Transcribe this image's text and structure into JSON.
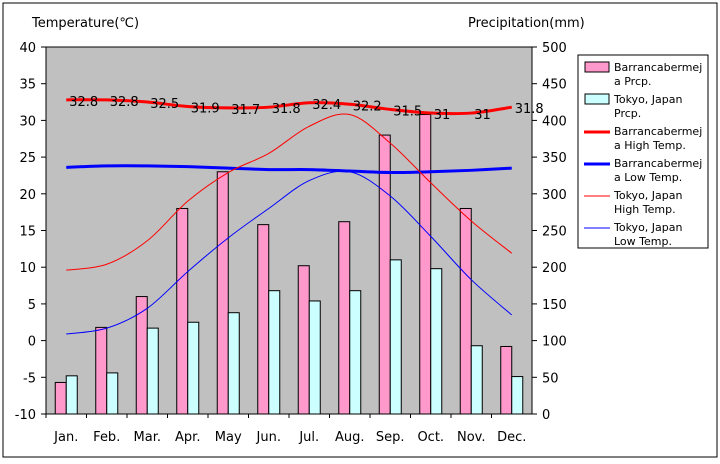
{
  "chart_data": {
    "type": "bar+line",
    "title": "",
    "categories": [
      "Jan.",
      "Feb.",
      "Mar.",
      "Apr.",
      "May",
      "Jun.",
      "Jul.",
      "Aug.",
      "Sep.",
      "Oct.",
      "Nov.",
      "Dec."
    ],
    "y_left": {
      "label": "Temperature(℃)",
      "range": [
        -10,
        40
      ],
      "ticks": [
        40,
        35,
        30,
        25,
        20,
        15,
        10,
        5,
        0,
        -5,
        -10
      ]
    },
    "y_right": {
      "label": "Precipitation(mm)",
      "range": [
        0,
        500
      ],
      "ticks": [
        500,
        450,
        400,
        350,
        300,
        250,
        200,
        150,
        100,
        50,
        0
      ]
    },
    "grid": false,
    "legend_position": "right",
    "series": [
      {
        "name": "Barrancabermeja Prcp.",
        "legend": [
          "Barrancabermej",
          "a Prcp."
        ],
        "kind": "bar",
        "axis": "right",
        "color": "#ff99cc",
        "values": [
          43,
          118,
          160,
          280,
          330,
          258,
          202,
          262,
          380,
          408,
          280,
          92
        ]
      },
      {
        "name": "Tokyo, Japan Prcp.",
        "legend": [
          "Tokyo, Japan",
          "Prcp."
        ],
        "kind": "bar",
        "axis": "right",
        "color": "#ccffff",
        "values": [
          52,
          56,
          117,
          125,
          138,
          168,
          154,
          168,
          210,
          198,
          93,
          51
        ]
      },
      {
        "name": "Barrancabermeja High Temp.",
        "legend": [
          "Barrancabermej",
          "a High Temp."
        ],
        "kind": "line",
        "axis": "left",
        "color": "#ff0000",
        "width": 3,
        "values": [
          32.8,
          32.8,
          32.5,
          31.9,
          31.7,
          31.8,
          32.4,
          32.2,
          31.5,
          31,
          31,
          31.8
        ],
        "labels": [
          "32.8",
          "32.8",
          "32.5",
          "31.9",
          "31.7",
          "31.8",
          "32.4",
          "32.2",
          "31.5",
          "31",
          "31",
          "31.8"
        ]
      },
      {
        "name": "Barrancabermeja Low Temp.",
        "legend": [
          "Barrancabermej",
          "a Low Temp."
        ],
        "kind": "line",
        "axis": "left",
        "color": "#0000ff",
        "width": 3,
        "values": [
          23.6,
          23.8,
          23.8,
          23.7,
          23.5,
          23.3,
          23.3,
          23.1,
          22.9,
          23.0,
          23.2,
          23.5
        ]
      },
      {
        "name": "Tokyo, Japan High Temp.",
        "legend": [
          "Tokyo, Japan",
          "High Temp."
        ],
        "kind": "line",
        "axis": "left",
        "color": "#ff0000",
        "width": 1,
        "values": [
          9.6,
          10.4,
          13.6,
          19.0,
          22.9,
          25.5,
          29.2,
          30.8,
          26.9,
          21.5,
          16.3,
          11.9
        ]
      },
      {
        "name": "Tokyo, Japan Low Temp.",
        "legend": [
          "Tokyo, Japan",
          "Low Temp."
        ],
        "kind": "line",
        "axis": "left",
        "color": "#0000ff",
        "width": 1,
        "values": [
          0.9,
          1.7,
          4.4,
          9.4,
          14.0,
          18.0,
          21.8,
          23.0,
          19.7,
          14.2,
          8.3,
          3.5
        ]
      }
    ]
  }
}
